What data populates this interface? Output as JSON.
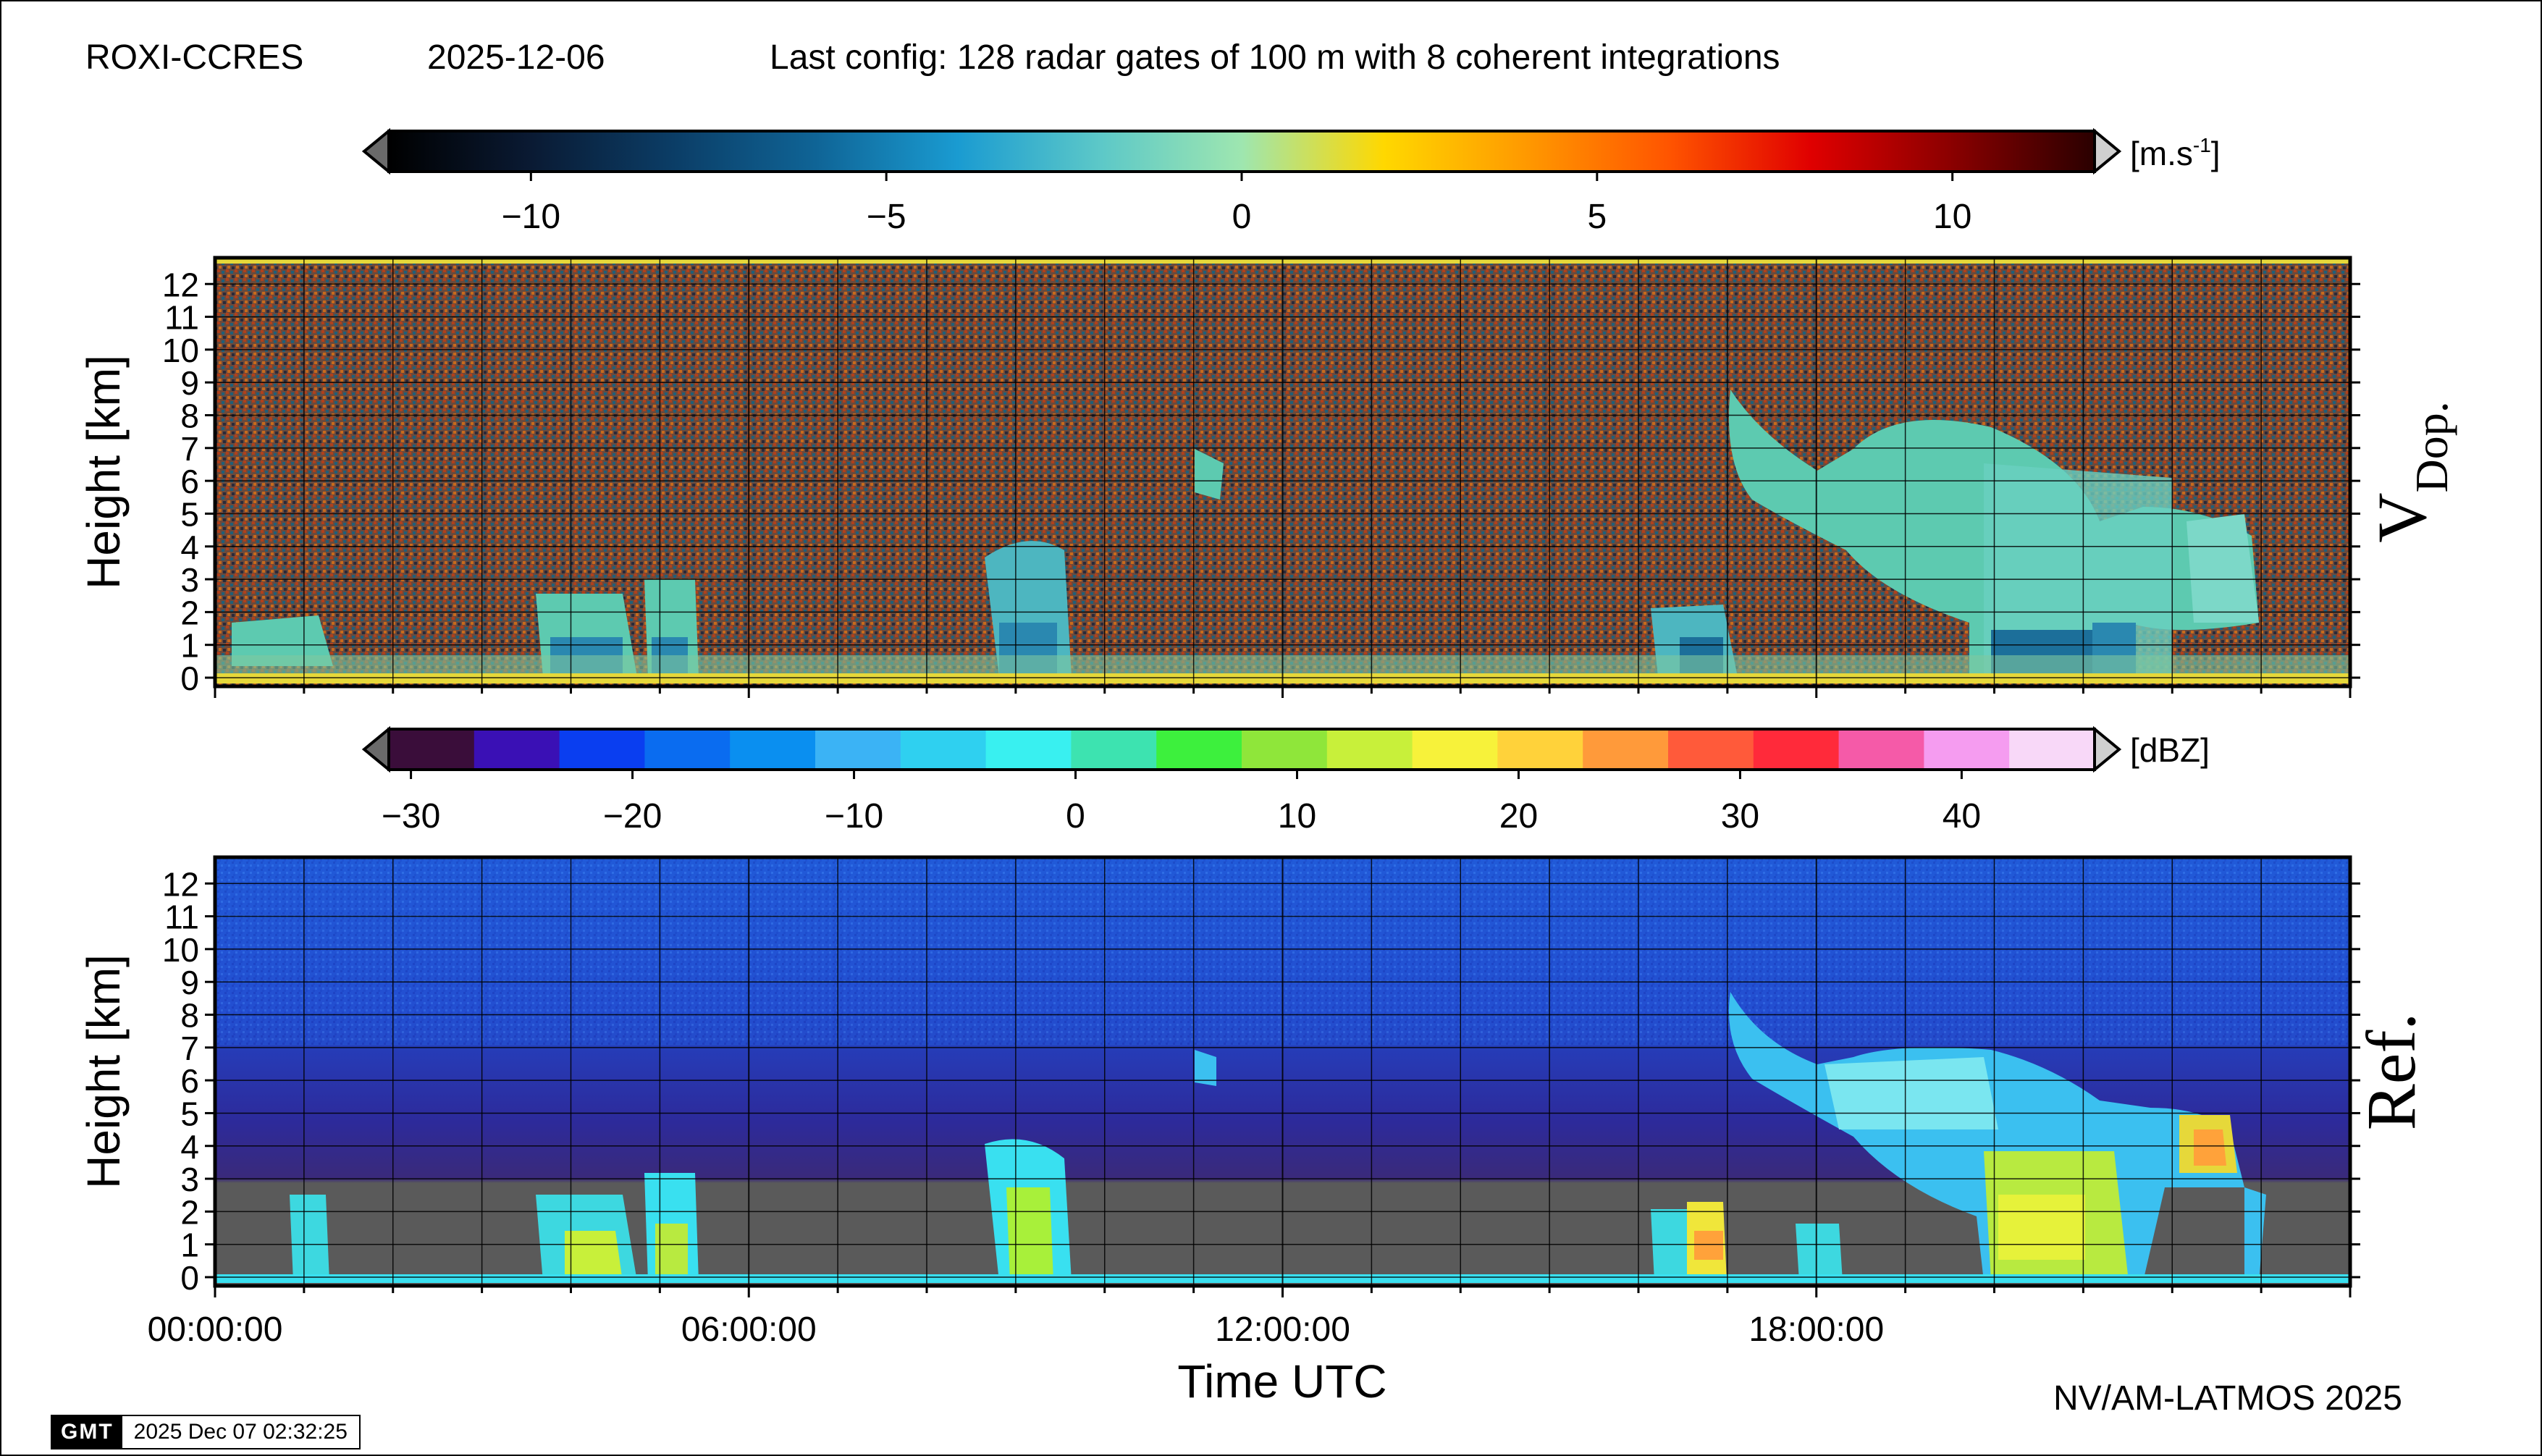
{
  "header": {
    "station": "ROXI-CCRES",
    "date": "2025-12-06",
    "config": "Last config: 128 radar gates of 100 m with 8 coherent integrations"
  },
  "footer": {
    "credit": "NV/AM-LATMOS 2025",
    "gmt_logo": "GMT",
    "gmt_timestamp": "2025 Dec 07 02:32:25"
  },
  "chart_data": [
    {
      "type": "heatmap",
      "name": "Doppler velocity panel",
      "panel_label": "V",
      "panel_label_sub": "Dop.",
      "ylabel": "Height [km]",
      "ylim": [
        0,
        12.8
      ],
      "yticks": [
        "0",
        "1",
        "2",
        "3",
        "4",
        "5",
        "6",
        "7",
        "8",
        "9",
        "10",
        "11",
        "12"
      ],
      "xlim_hours": [
        0,
        24
      ],
      "grid": true,
      "colorbar": {
        "unit": "[m.s",
        "unit_sup": "-1",
        "unit_end": "]",
        "range": [
          -12,
          12
        ],
        "ticks": [
          "−10",
          "−5",
          "0",
          "5",
          "10"
        ],
        "tick_values": [
          -10,
          -5,
          0,
          5,
          10
        ],
        "stops": [
          "#000000",
          "#0a1a33",
          "#0b3d66",
          "#0f6496",
          "#1a9bd1",
          "#5cc8c8",
          "#9ee6b0",
          "#ffd800",
          "#ff9900",
          "#ff5500",
          "#e00000",
          "#8a0000",
          "#2a0000"
        ]
      }
    },
    {
      "type": "heatmap",
      "name": "Reflectivity panel",
      "panel_label": "Ref.",
      "ylabel": "Height [km]",
      "xlabel": "Time UTC",
      "ylim": [
        0,
        12.8
      ],
      "yticks": [
        "0",
        "1",
        "2",
        "3",
        "4",
        "5",
        "6",
        "7",
        "8",
        "9",
        "10",
        "11",
        "12"
      ],
      "xlim_hours": [
        0,
        24
      ],
      "xticks": [
        "00:00:00",
        "06:00:00",
        "12:00:00",
        "18:00:00"
      ],
      "xtick_values": [
        0,
        6,
        12,
        18
      ],
      "grid": true,
      "colorbar": {
        "unit": "[dBZ]",
        "range": [
          -31,
          46
        ],
        "ticks": [
          "−30",
          "−20",
          "−10",
          "0",
          "10",
          "20",
          "30",
          "40"
        ],
        "tick_values": [
          -30,
          -20,
          -10,
          0,
          10,
          20,
          30,
          40
        ],
        "colors": [
          "#3a0d3a",
          "#3a10b5",
          "#0a3ef0",
          "#0a6cf0",
          "#0a8ff0",
          "#3bb3f5",
          "#2fd0f0",
          "#39f0f0",
          "#3de3b0",
          "#3df03d",
          "#8fe63a",
          "#c8f03a",
          "#f7f23a",
          "#ffd23a",
          "#ff9a3a",
          "#ff5a3a",
          "#ff2a3a",
          "#f55aa8",
          "#f59cf0",
          "#f8d8f8"
        ]
      }
    }
  ]
}
